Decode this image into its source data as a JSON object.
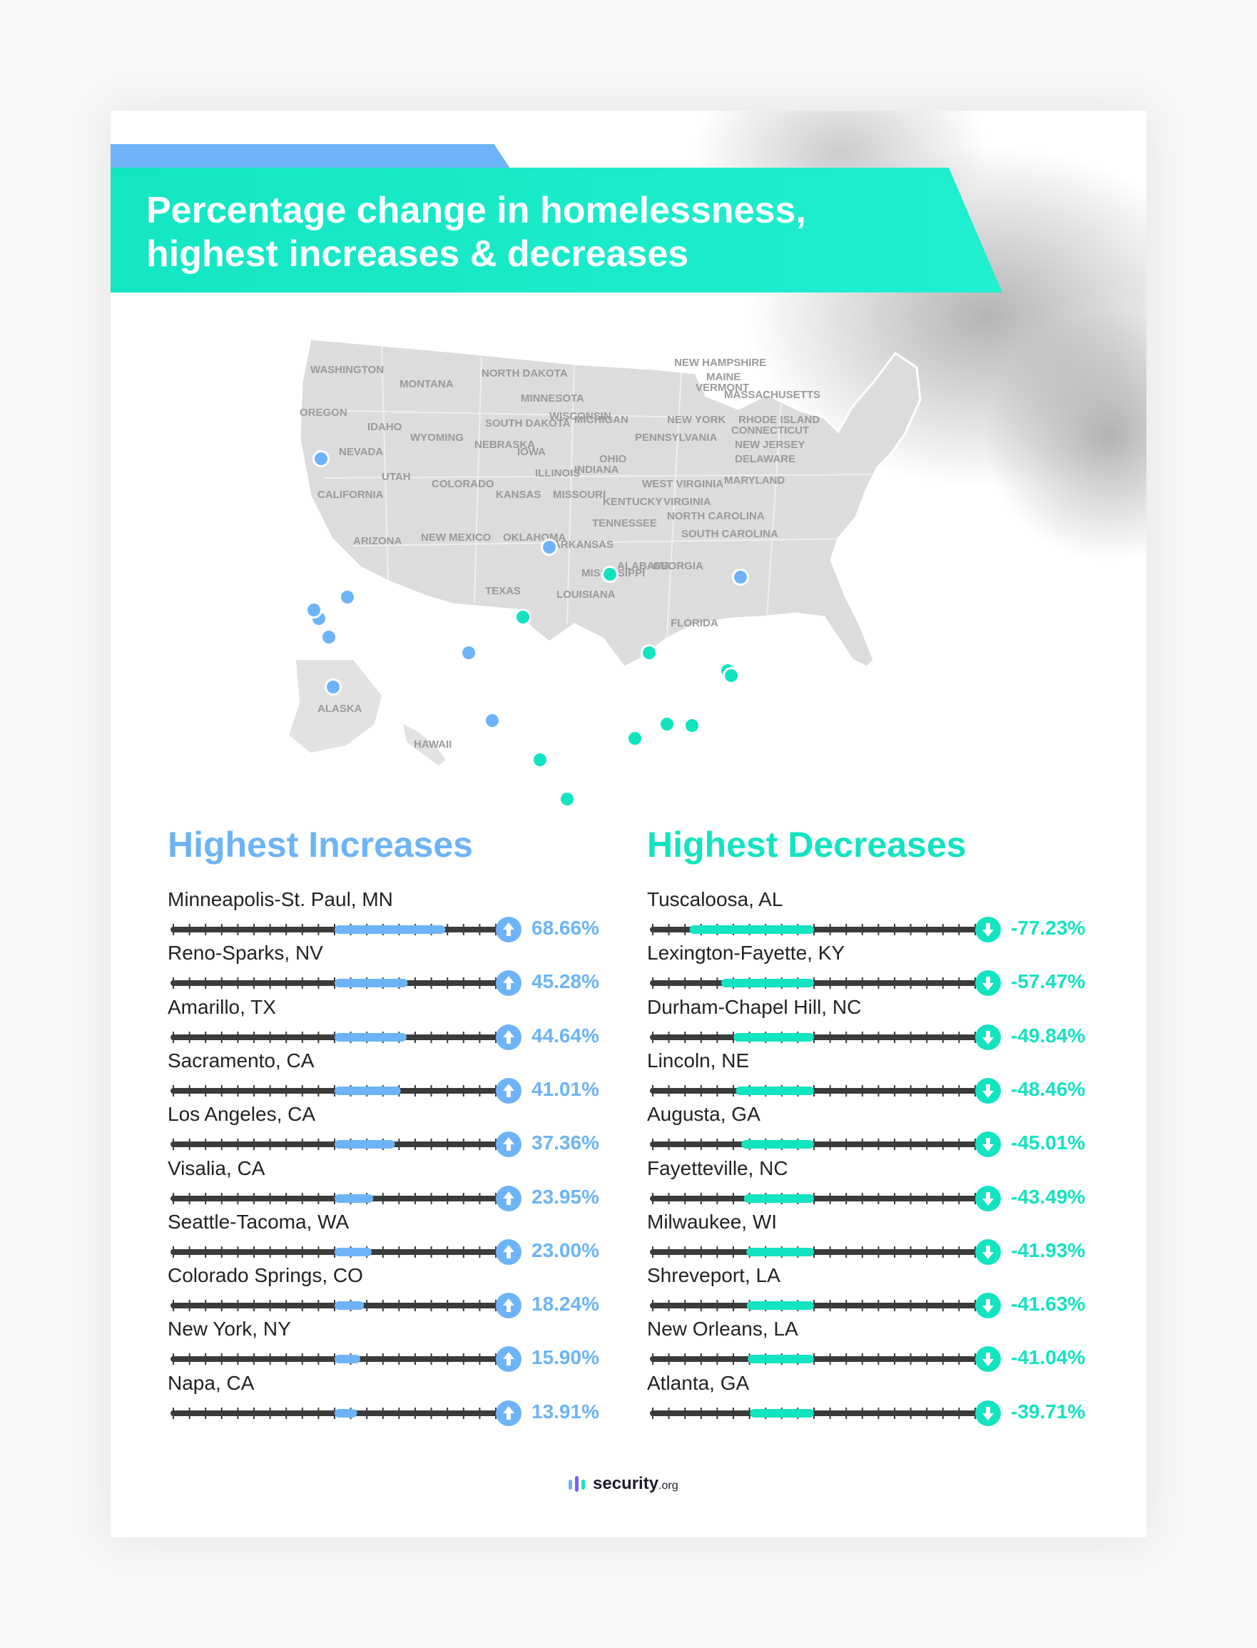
{
  "title_lines": [
    "Percentage change in homelessness,",
    "highest increases & decreases"
  ],
  "colors": {
    "increase": "#6cb4f7",
    "decrease": "#12e3c0",
    "track": "#3b3b3b",
    "map_fill": "#dcdcdc",
    "title_band": "#12e6c2"
  },
  "map": {
    "state_labels": [
      "WASHINGTON",
      "OREGON",
      "IDAHO",
      "MONTANA",
      "NORTH DAKOTA",
      "SOUTH DAKOTA",
      "MINNESOTA",
      "WISCONSIN",
      "MICHIGAN",
      "NEW YORK",
      "MAINE",
      "NEW HAMPSHIRE",
      "VERMONT",
      "MASSACHUSETTS",
      "RHODE ISLAND",
      "CONNECTICUT",
      "NEW JERSEY",
      "DELAWARE",
      "MARYLAND",
      "PENNSYLVANIA",
      "OHIO",
      "INDIANA",
      "ILLINOIS",
      "IOWA",
      "NEBRASKA",
      "WYOMING",
      "NEVADA",
      "CALIFORNIA",
      "UTAH",
      "COLORADO",
      "KANSAS",
      "MISSOURI",
      "KENTUCKY",
      "WEST VIRGINIA",
      "VIRGINIA",
      "NORTH CAROLINA",
      "SOUTH CAROLINA",
      "TENNESSEE",
      "ARKANSAS",
      "OKLAHOMA",
      "NEW MEXICO",
      "ARIZONA",
      "TEXAS",
      "LOUISIANA",
      "MISSISSIPPI",
      "ALABAMA",
      "GEORGIA",
      "FLORIDA",
      "ALASKA",
      "HAWAII"
    ],
    "increase_icon": "blue-location-dot-icon",
    "decrease_icon": "teal-location-dot-icon"
  },
  "increases": {
    "heading": "Highest Increases",
    "icon": "up-arrow-circle-icon",
    "items": [
      {
        "city": "Minneapolis-St. Paul, MN",
        "value": 68.66,
        "label": "68.66%"
      },
      {
        "city": "Reno-Sparks, NV",
        "value": 45.28,
        "label": "45.28%"
      },
      {
        "city": "Amarillo, TX",
        "value": 44.64,
        "label": "44.64%"
      },
      {
        "city": "Sacramento, CA",
        "value": 41.01,
        "label": "41.01%"
      },
      {
        "city": "Los Angeles, CA",
        "value": 37.36,
        "label": "37.36%"
      },
      {
        "city": "Visalia, CA",
        "value": 23.95,
        "label": "23.95%"
      },
      {
        "city": "Seattle-Tacoma, WA",
        "value": 23.0,
        "label": "23.00%"
      },
      {
        "city": "Colorado Springs, CO",
        "value": 18.24,
        "label": "18.24%"
      },
      {
        "city": "New York, NY",
        "value": 15.9,
        "label": "15.90%"
      },
      {
        "city": "Napa, CA",
        "value": 13.91,
        "label": "13.91%"
      }
    ]
  },
  "decreases": {
    "heading": "Highest Decreases",
    "icon": "down-arrow-circle-icon",
    "items": [
      {
        "city": "Tuscaloosa, AL",
        "value": -77.23,
        "label": "-77.23%"
      },
      {
        "city": "Lexington-Fayette, KY",
        "value": -57.47,
        "label": "-57.47%"
      },
      {
        "city": "Durham-Chapel Hill, NC",
        "value": -49.84,
        "label": "-49.84%"
      },
      {
        "city": "Lincoln, NE",
        "value": -48.46,
        "label": "-48.46%"
      },
      {
        "city": "Augusta, GA",
        "value": -45.01,
        "label": "-45.01%"
      },
      {
        "city": "Fayetteville, NC",
        "value": -43.49,
        "label": "-43.49%"
      },
      {
        "city": "Milwaukee, WI",
        "value": -41.93,
        "label": "-41.93%"
      },
      {
        "city": "Shreveport, LA",
        "value": -41.63,
        "label": "-41.63%"
      },
      {
        "city": "New Orleans, LA",
        "value": -41.04,
        "label": "-41.04%"
      },
      {
        "city": "Atlanta, GA",
        "value": -39.71,
        "label": "-39.71%"
      }
    ]
  },
  "chart_data": [
    {
      "type": "bar",
      "title": "Highest Increases",
      "categories": [
        "Minneapolis-St. Paul, MN",
        "Reno-Sparks, NV",
        "Amarillo, TX",
        "Sacramento, CA",
        "Los Angeles, CA",
        "Visalia, CA",
        "Seattle-Tacoma, WA",
        "Colorado Springs, CO",
        "New York, NY",
        "Napa, CA"
      ],
      "values": [
        68.66,
        45.28,
        44.64,
        41.01,
        37.36,
        23.95,
        23.0,
        18.24,
        15.9,
        13.91
      ],
      "ylim": [
        -100,
        100
      ]
    },
    {
      "type": "bar",
      "title": "Highest Decreases",
      "categories": [
        "Tuscaloosa, AL",
        "Lexington-Fayette, KY",
        "Durham-Chapel Hill, NC",
        "Lincoln, NE",
        "Augusta, GA",
        "Fayetteville, NC",
        "Milwaukee, WI",
        "Shreveport, LA",
        "New Orleans, LA",
        "Atlanta, GA"
      ],
      "values": [
        -77.23,
        -57.47,
        -49.84,
        -48.46,
        -45.01,
        -43.49,
        -41.93,
        -41.63,
        -41.04,
        -39.71
      ],
      "ylim": [
        -100,
        100
      ]
    }
  ],
  "logo": {
    "name": "security",
    "suffix": ".org"
  }
}
